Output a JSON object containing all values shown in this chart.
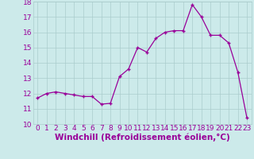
{
  "x": [
    0,
    1,
    2,
    3,
    4,
    5,
    6,
    7,
    8,
    9,
    10,
    11,
    12,
    13,
    14,
    15,
    16,
    17,
    18,
    19,
    20,
    21,
    22,
    23
  ],
  "y": [
    11.7,
    12.0,
    12.1,
    12.0,
    11.9,
    11.8,
    11.8,
    11.3,
    11.35,
    13.1,
    13.6,
    15.0,
    14.7,
    15.6,
    16.0,
    16.1,
    16.1,
    17.8,
    17.0,
    15.8,
    15.8,
    15.3,
    13.4,
    10.4
  ],
  "xlim": [
    -0.5,
    23.5
  ],
  "ylim": [
    10,
    18
  ],
  "yticks": [
    10,
    11,
    12,
    13,
    14,
    15,
    16,
    17,
    18
  ],
  "xtick_labels": [
    "0",
    "1",
    "2",
    "3",
    "4",
    "5",
    "6",
    "7",
    "8",
    "9",
    "10",
    "11",
    "12",
    "13",
    "14",
    "15",
    "16",
    "17",
    "18",
    "19",
    "20",
    "21",
    "22",
    "23"
  ],
  "xlabel": "Windchill (Refroidissement éolien,°C)",
  "line_color": "#990099",
  "marker": "+",
  "bg_color": "#cceaea",
  "grid_color": "#aacccc",
  "tick_label_color": "#990099",
  "axis_label_color": "#990099",
  "font_size_tick": 6.5,
  "font_size_label": 7.5
}
